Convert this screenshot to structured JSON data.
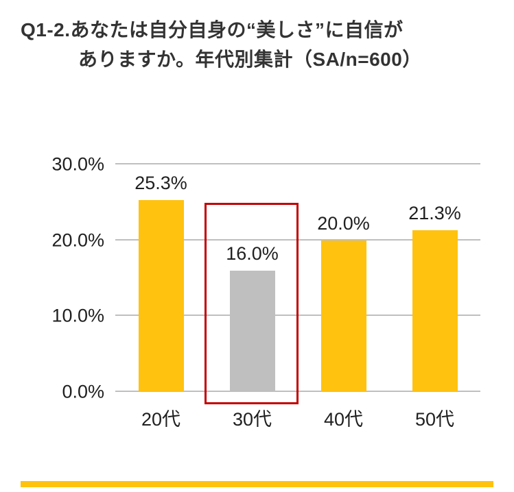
{
  "page": {
    "title_line1": "Q1-2.あなたは自分自身の“美しさ”に自信が",
    "title_line2": "ありますか。年代別集計（SA/n=600）"
  },
  "chart_data": {
    "type": "bar",
    "title": "Q1-2.あなたは自分自身の“美しさ”に自信がありますか。年代別集計（SA/n=600）",
    "categories": [
      "20代",
      "30代",
      "40代",
      "50代"
    ],
    "values": [
      25.3,
      16.0,
      20.0,
      21.3
    ],
    "data_labels": [
      "25.3%",
      "16.0%",
      "20.0%",
      "21.3%"
    ],
    "xlabel": "",
    "ylabel": "",
    "ylim": [
      0,
      30
    ],
    "yticks": [
      0,
      10,
      20,
      30
    ],
    "ytick_labels": [
      "0.0%",
      "10.0%",
      "20.0%",
      "30.0%"
    ],
    "grid": true,
    "legend": false,
    "bar_color": "#FFC20E",
    "gridline_color": "#BFBFBF",
    "highlight": {
      "category": "30代",
      "bar_color": "#BFBFBF",
      "box_color": "#C00000"
    }
  },
  "footer": {
    "accent_color": "#FFC20E"
  }
}
